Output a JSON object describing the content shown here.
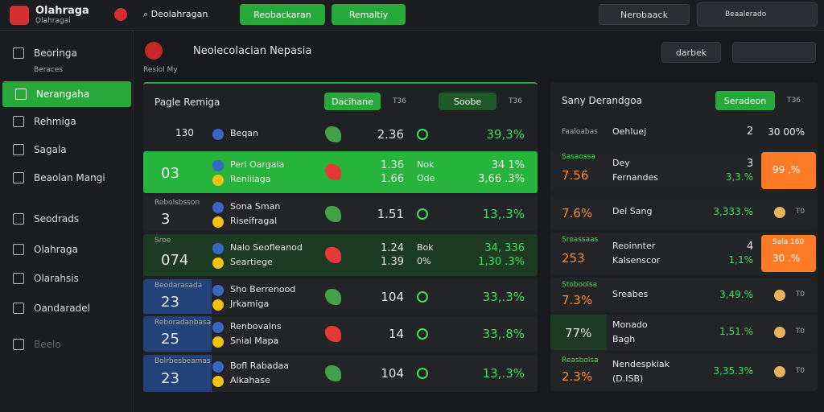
{
  "header": {
    "brand": "Olahraga",
    "brand_sub": "Olahragai",
    "search": "Deolahragan",
    "btn1": "Reobackaran",
    "btn2": "Remaltiy",
    "notif": "Nerobaack",
    "user": "Beaalerado"
  },
  "sidebar": {
    "items": [
      {
        "label": "Beoringa",
        "sub": "Beraces"
      },
      {
        "label": "Nerangaha"
      },
      {
        "label": "Rehmiga"
      },
      {
        "label": "Sagala"
      },
      {
        "label": "Beaolan Mangi"
      },
      {
        "label": "Seodrads"
      },
      {
        "label": "Olahraga"
      },
      {
        "label": "Olarahsis"
      },
      {
        "label": "Oandaradel"
      },
      {
        "label": "Beelo"
      }
    ]
  },
  "main": {
    "title": "Neolecolacian Nepasia",
    "sub": "Resiol My",
    "search": "darbek"
  },
  "left": {
    "title": "Pagle Remiga",
    "tab1": "Dacihane",
    "tab1_count": "T36",
    "tab2": "Soobe",
    "tab2_count": "T36",
    "rows": [
      {
        "score": "130",
        "teams": [
          "Beqan"
        ],
        "odds": [
          "2.36"
        ],
        "pct": [
          "39,3%"
        ]
      },
      {
        "score": "03",
        "teams": [
          "Peri Oargaia",
          "Renlilaga"
        ],
        "odds": [
          "1.36",
          "1.66"
        ],
        "mid": [
          "Nok",
          "Ode"
        ],
        "pct": [
          "34  1%",
          "3,66 .3%"
        ]
      },
      {
        "tag": "Robolsbsson",
        "score": "3",
        "teams": [
          "Sona Sman",
          "Riseifragal"
        ],
        "odds": [
          "1.51"
        ],
        "pct": [
          "13,.3%"
        ]
      },
      {
        "tag": "Sroe",
        "score": "074",
        "teams": [
          "Nalo Seofleanod",
          "Seartiege"
        ],
        "odds": [
          "1.24",
          "1.39"
        ],
        "mid": [
          "Bok",
          "0%"
        ],
        "pct": [
          "34, 336",
          "1,30 .3%"
        ]
      },
      {
        "tag": "Beodarasada",
        "score": "23",
        "teams": [
          "Sho Berrenood",
          "Jrkamiga"
        ],
        "odds": [
          "104"
        ],
        "pct": [
          "33,.3%"
        ]
      },
      {
        "tag": "Reboradanbasa",
        "score": "25",
        "teams": [
          "Renbovalns",
          "Snial Mapa"
        ],
        "odds": [
          "14"
        ],
        "pct": [
          "33,.8%"
        ]
      },
      {
        "tag": "Bolrbesbeamas",
        "score": "23",
        "teams": [
          "Bofl Rabadaa",
          "Alkahase"
        ],
        "odds": [
          "104"
        ],
        "pct": [
          "13,.3%"
        ]
      }
    ]
  },
  "right": {
    "title": "Sany Derandgoa",
    "tab": "Seradeon",
    "tab_count": "T36",
    "rows": [
      {
        "tag": "Faaloabas",
        "teams": [
          "Oehluej"
        ],
        "num": "2",
        "pct": "30 00%"
      },
      {
        "tag": "Sasaossa",
        "score": "7.56",
        "teams": [
          "Dey",
          "Fernandes"
        ],
        "num": "3",
        "pct": "3,3.%",
        "badge": "99 ,%"
      },
      {
        "score": "7.6%",
        "teams": [
          "Del Sang"
        ],
        "pct": "3,333.%",
        "end": "T0"
      },
      {
        "tag": "Sroassaas",
        "score": "253",
        "teams": [
          "Reoinnter",
          "Kalsenscor"
        ],
        "num": "4",
        "pct": "1,1%",
        "badge": "30 .%",
        "badge_sub": "Sala 160"
      },
      {
        "tag": "Stoboolsa",
        "score": "7.3%",
        "teams": [
          "Sreabes"
        ],
        "pct": "3,49.%",
        "end": "T0"
      },
      {
        "score": "77%",
        "teams": [
          "Monado",
          "Bagh"
        ],
        "pct": "1,51.%",
        "end": "T0"
      },
      {
        "tag": "Reasbolsa",
        "score": "2.3%",
        "teams": [
          "Nendespkiak",
          "(D.ISB)"
        ],
        "pct": "3,35.3%",
        "end": "T0"
      }
    ]
  }
}
